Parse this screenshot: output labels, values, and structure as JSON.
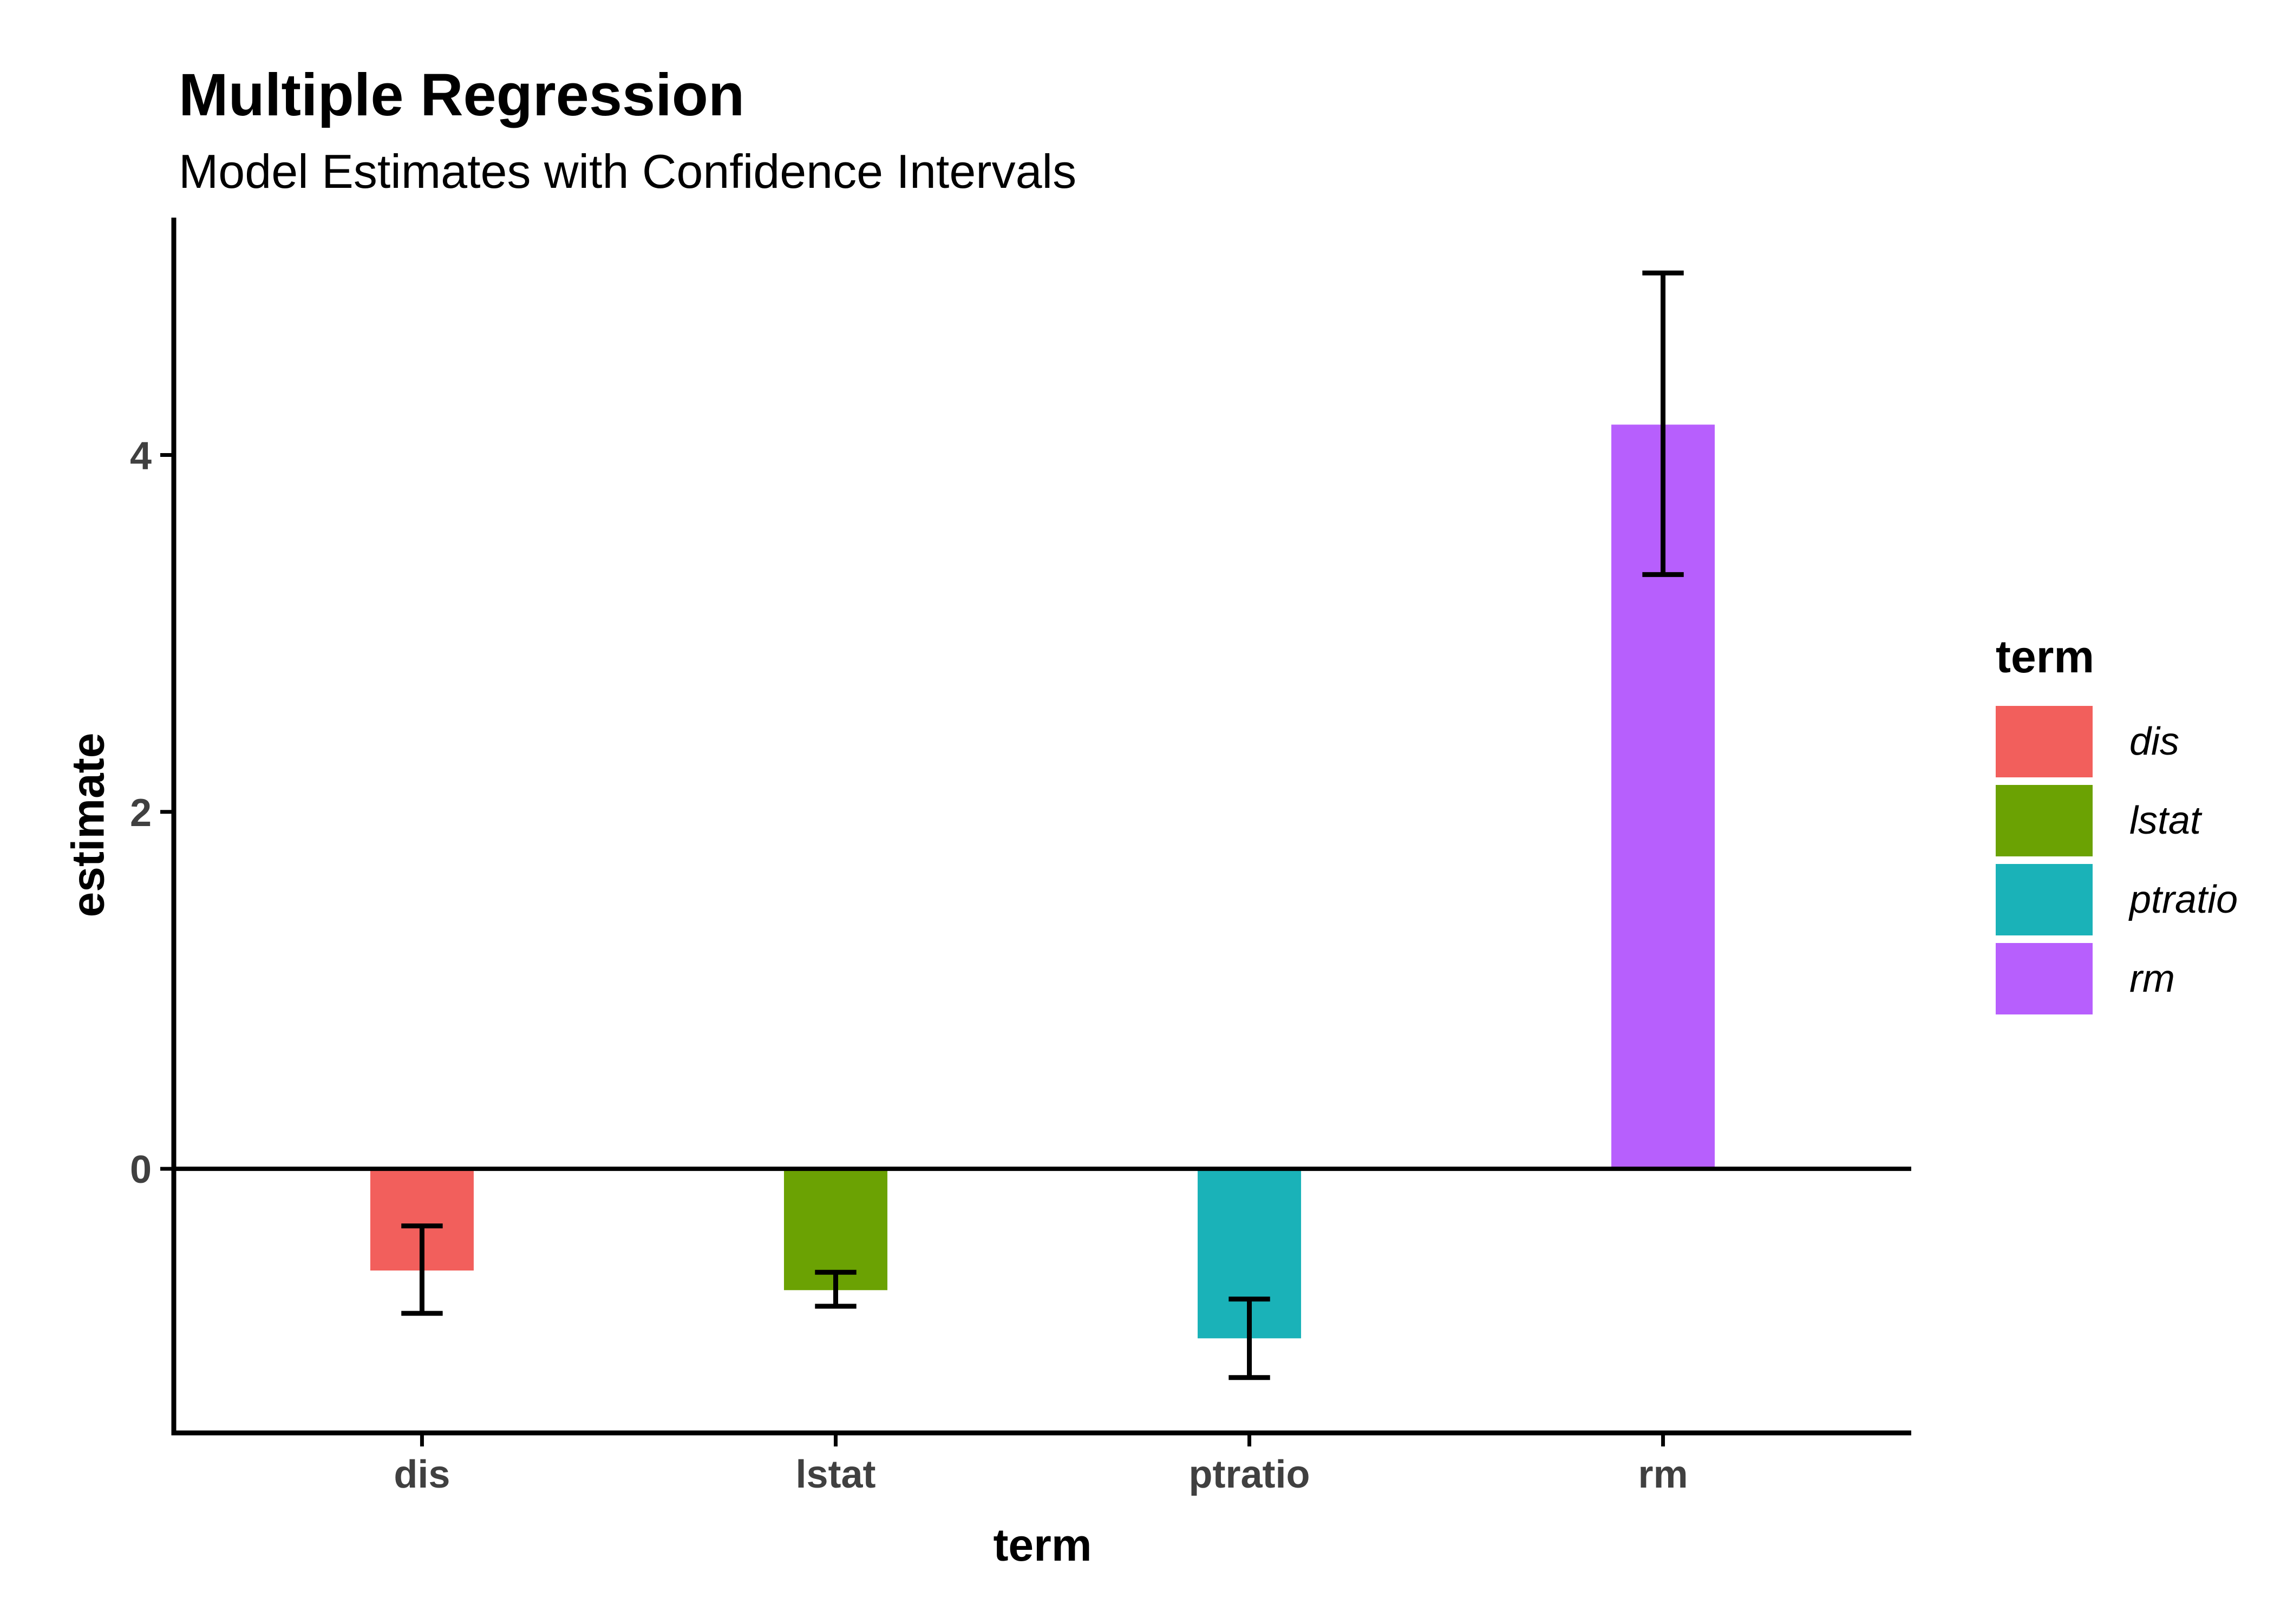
{
  "chart_data": {
    "type": "bar",
    "title": "Multiple Regression",
    "subtitle": "Model Estimates with Confidence Intervals",
    "xlabel": "term",
    "ylabel": "estimate",
    "legend": {
      "title": "term",
      "position": "right",
      "entries": [
        "dis",
        "lstat",
        "ptratio",
        "rm"
      ]
    },
    "categories": [
      "dis",
      "lstat",
      "ptratio",
      "rm"
    ],
    "series": [
      {
        "name": "estimate",
        "values": [
          -0.57,
          -0.68,
          -0.95,
          4.17
        ]
      }
    ],
    "error_bars": {
      "conf_low": [
        -0.81,
        -0.77,
        -1.17,
        3.33
      ],
      "conf_high": [
        -0.32,
        -0.58,
        -0.73,
        5.02
      ]
    },
    "colors": [
      "#F25F5C",
      "#6BA203",
      "#1AB2B8",
      "#B75FFD"
    ],
    "y_ticks": [
      0,
      2,
      4
    ],
    "ylim": [
      -1.48,
      5.33
    ],
    "bar_width_fraction": 0.25,
    "cap_width_fraction": 0.1,
    "grid": false,
    "zero_line": true,
    "styles": {
      "tick_label_color": "#404040",
      "axis_color": "#000000",
      "error_bar_color": "#000000",
      "background": "#FFFFFF"
    }
  }
}
